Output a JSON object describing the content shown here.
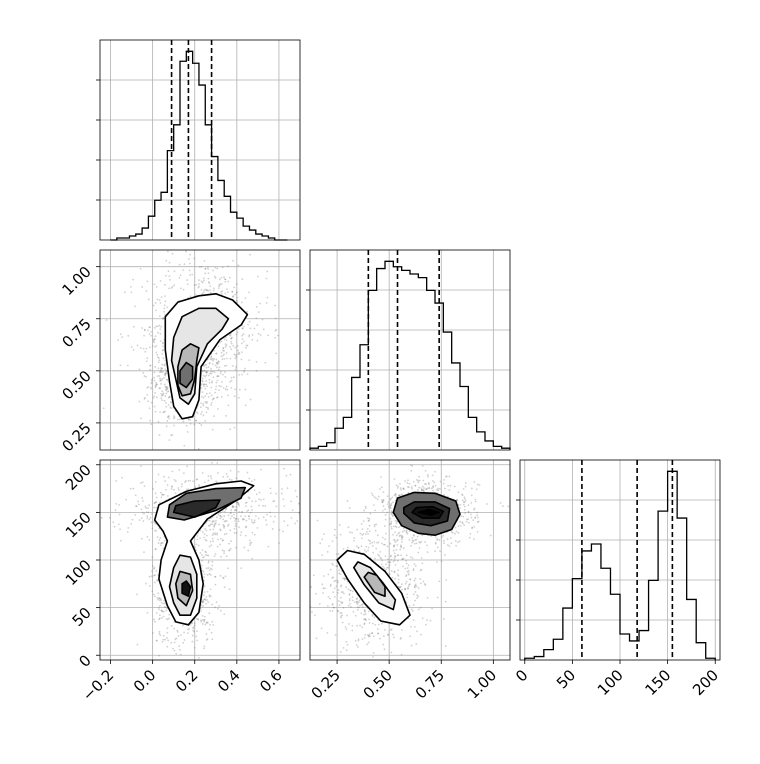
{
  "colors": {
    "line": "#000000",
    "grid": "#b0b0b0",
    "background": "#ffffff"
  },
  "chart_data": {
    "type": "corner",
    "grid": true,
    "params": [
      {
        "range": [
          -0.25,
          0.7
        ],
        "ticks": [
          -0.2,
          0.0,
          0.2,
          0.4,
          0.6
        ],
        "tick_labels": [
          "−0.2",
          "0.0",
          "0.2",
          "0.4",
          "0.6"
        ]
      },
      {
        "range": [
          0.12,
          1.08
        ],
        "ticks": [
          0.25,
          0.5,
          0.75,
          1.0
        ],
        "tick_labels": [
          "0.25",
          "0.50",
          "0.75",
          "1.00"
        ]
      },
      {
        "range": [
          -5,
          205
        ],
        "ticks": [
          0,
          50,
          100,
          150,
          200
        ],
        "tick_labels": [
          "0",
          "50",
          "100",
          "150",
          "200"
        ]
      }
    ],
    "histograms": [
      {
        "param": 0,
        "bin_edges": [
          -0.2,
          -0.17,
          -0.14,
          -0.11,
          -0.08,
          -0.05,
          -0.02,
          0.01,
          0.04,
          0.07,
          0.1,
          0.13,
          0.16,
          0.19,
          0.22,
          0.25,
          0.28,
          0.31,
          0.34,
          0.37,
          0.4,
          0.43,
          0.46,
          0.49,
          0.52,
          0.55,
          0.58,
          0.61,
          0.64
        ],
        "counts": [
          0,
          1,
          1,
          2,
          3,
          6,
          12,
          20,
          24,
          45,
          58,
          90,
          95,
          89,
          78,
          58,
          42,
          30,
          22,
          14,
          11,
          7,
          5,
          3,
          2,
          1,
          0,
          0
        ],
        "quantiles": [
          0.09,
          0.17,
          0.28
        ]
      },
      {
        "param": 1,
        "bin_edges": [
          0.12,
          0.16,
          0.2,
          0.24,
          0.28,
          0.32,
          0.36,
          0.4,
          0.44,
          0.48,
          0.52,
          0.56,
          0.6,
          0.64,
          0.68,
          0.72,
          0.76,
          0.8,
          0.84,
          0.88,
          0.92,
          0.96,
          1.0,
          1.04,
          1.08
        ],
        "counts": [
          1,
          2,
          4,
          12,
          18,
          40,
          58,
          88,
          100,
          104,
          101,
          99,
          97,
          95,
          88,
          81,
          65,
          48,
          35,
          18,
          10,
          5,
          2,
          1
        ],
        "quantiles": [
          0.4,
          0.54,
          0.74
        ]
      },
      {
        "param": 2,
        "bin_edges": [
          0,
          10,
          20,
          30,
          40,
          50,
          60,
          70,
          80,
          90,
          100,
          110,
          120,
          130,
          140,
          150,
          160,
          170,
          180,
          190,
          200
        ],
        "counts": [
          1,
          2,
          6,
          12,
          30,
          47,
          63,
          67,
          53,
          38,
          15,
          11,
          17,
          46,
          86,
          109,
          82,
          35,
          10,
          1
        ],
        "quantiles": [
          60,
          118,
          155
        ]
      }
    ],
    "joint": [
      {
        "x_param": 0,
        "y_param": 1,
        "modes": [
          {
            "x": 0.15,
            "y": 0.47,
            "sx": 0.05,
            "sy": 0.08
          },
          {
            "x": 0.25,
            "y": 0.7,
            "sx": 0.1,
            "sy": 0.12
          }
        ],
        "contours": [
          [
            [
              0.08,
              0.45
            ],
            [
              0.1,
              0.33
            ],
            [
              0.14,
              0.27
            ],
            [
              0.19,
              0.28
            ],
            [
              0.22,
              0.36
            ],
            [
              0.23,
              0.52
            ],
            [
              0.32,
              0.65
            ],
            [
              0.42,
              0.72
            ],
            [
              0.45,
              0.77
            ],
            [
              0.38,
              0.84
            ],
            [
              0.3,
              0.87
            ],
            [
              0.22,
              0.86
            ],
            [
              0.12,
              0.83
            ],
            [
              0.06,
              0.76
            ],
            [
              0.06,
              0.6
            ]
          ],
          [
            [
              0.11,
              0.46
            ],
            [
              0.13,
              0.37
            ],
            [
              0.17,
              0.34
            ],
            [
              0.2,
              0.39
            ],
            [
              0.21,
              0.52
            ],
            [
              0.26,
              0.63
            ],
            [
              0.33,
              0.7
            ],
            [
              0.36,
              0.75
            ],
            [
              0.3,
              0.8
            ],
            [
              0.22,
              0.8
            ],
            [
              0.14,
              0.76
            ],
            [
              0.1,
              0.66
            ],
            [
              0.09,
              0.55
            ]
          ],
          [
            [
              0.12,
              0.43
            ],
            [
              0.14,
              0.38
            ],
            [
              0.18,
              0.39
            ],
            [
              0.2,
              0.46
            ],
            [
              0.21,
              0.55
            ],
            [
              0.22,
              0.61
            ],
            [
              0.18,
              0.63
            ],
            [
              0.14,
              0.6
            ],
            [
              0.12,
              0.52
            ]
          ],
          [
            [
              0.13,
              0.44
            ],
            [
              0.16,
              0.42
            ],
            [
              0.19,
              0.46
            ],
            [
              0.19,
              0.52
            ],
            [
              0.16,
              0.54
            ],
            [
              0.13,
              0.5
            ]
          ]
        ]
      },
      {
        "x_param": 0,
        "y_param": 2,
        "modes": [
          {
            "x": 0.15,
            "y": 72,
            "sx": 0.05,
            "sy": 22
          },
          {
            "x": 0.25,
            "y": 152,
            "sx": 0.13,
            "sy": 13
          }
        ],
        "contours": [
          [
            [
              0.07,
              52
            ],
            [
              0.11,
              35
            ],
            [
              0.17,
              32
            ],
            [
              0.22,
              45
            ],
            [
              0.24,
              75
            ],
            [
              0.22,
              100
            ],
            [
              0.18,
              120
            ],
            [
              0.26,
              143
            ],
            [
              0.4,
              163
            ],
            [
              0.48,
              178
            ],
            [
              0.42,
              183
            ],
            [
              0.3,
              180
            ],
            [
              0.16,
              172
            ],
            [
              0.03,
              158
            ],
            [
              0.01,
              142
            ],
            [
              0.05,
              130
            ],
            [
              0.07,
              120
            ],
            [
              0.04,
              100
            ],
            [
              0.03,
              80
            ]
          ],
          [
            [
              0.1,
              55
            ],
            [
              0.13,
              42
            ],
            [
              0.18,
              42
            ],
            [
              0.21,
              60
            ],
            [
              0.21,
              85
            ],
            [
              0.18,
              103
            ],
            [
              0.13,
              105
            ],
            [
              0.1,
              92
            ],
            [
              0.08,
              72
            ]
          ],
          [
            [
              0.12,
              60
            ],
            [
              0.16,
              52
            ],
            [
              0.19,
              68
            ],
            [
              0.18,
              85
            ],
            [
              0.13,
              88
            ],
            [
              0.11,
              75
            ]
          ],
          [
            [
              0.07,
              145
            ],
            [
              0.15,
              142
            ],
            [
              0.3,
              152
            ],
            [
              0.42,
              165
            ],
            [
              0.44,
              176
            ],
            [
              0.3,
              175
            ],
            [
              0.16,
              170
            ],
            [
              0.08,
              158
            ]
          ],
          [
            [
              0.1,
              150
            ],
            [
              0.2,
              145
            ],
            [
              0.3,
              155
            ],
            [
              0.32,
              163
            ],
            [
              0.2,
              162
            ],
            [
              0.11,
              157
            ]
          ],
          [
            [
              0.14,
              65
            ],
            [
              0.17,
              62
            ],
            [
              0.18,
              72
            ],
            [
              0.16,
              78
            ],
            [
              0.14,
              75
            ]
          ]
        ]
      },
      {
        "x_param": 1,
        "y_param": 2,
        "modes": [
          {
            "x": 0.42,
            "y": 72,
            "sx": 0.09,
            "sy": 20
          },
          {
            "x": 0.68,
            "y": 150,
            "sx": 0.08,
            "sy": 12
          }
        ],
        "contours": [
          [
            [
              0.25,
              100
            ],
            [
              0.3,
              80
            ],
            [
              0.38,
              55
            ],
            [
              0.46,
              36
            ],
            [
              0.55,
              32
            ],
            [
              0.6,
              42
            ],
            [
              0.56,
              65
            ],
            [
              0.48,
              88
            ],
            [
              0.38,
              106
            ],
            [
              0.3,
              110
            ]
          ],
          [
            [
              0.33,
              92
            ],
            [
              0.38,
              74
            ],
            [
              0.45,
              55
            ],
            [
              0.52,
              48
            ],
            [
              0.53,
              58
            ],
            [
              0.47,
              76
            ],
            [
              0.41,
              92
            ],
            [
              0.35,
              98
            ]
          ],
          [
            [
              0.38,
              82
            ],
            [
              0.43,
              66
            ],
            [
              0.48,
              62
            ],
            [
              0.48,
              72
            ],
            [
              0.44,
              84
            ],
            [
              0.4,
              87
            ]
          ],
          [
            [
              0.52,
              150
            ],
            [
              0.56,
              136
            ],
            [
              0.64,
              128
            ],
            [
              0.72,
              126
            ],
            [
              0.8,
              132
            ],
            [
              0.84,
              148
            ],
            [
              0.82,
              162
            ],
            [
              0.72,
              170
            ],
            [
              0.62,
              171
            ],
            [
              0.54,
              165
            ]
          ],
          [
            [
              0.57,
              149
            ],
            [
              0.62,
              139
            ],
            [
              0.7,
              136
            ],
            [
              0.78,
              141
            ],
            [
              0.79,
              154
            ],
            [
              0.72,
              161
            ],
            [
              0.62,
              161
            ],
            [
              0.57,
              155
            ]
          ],
          [
            [
              0.61,
              150
            ],
            [
              0.66,
              144
            ],
            [
              0.74,
              144
            ],
            [
              0.76,
              151
            ],
            [
              0.71,
              156
            ],
            [
              0.63,
              155
            ]
          ],
          [
            [
              0.64,
              150
            ],
            [
              0.7,
              147
            ],
            [
              0.74,
              150
            ],
            [
              0.69,
              153
            ]
          ]
        ]
      }
    ]
  }
}
